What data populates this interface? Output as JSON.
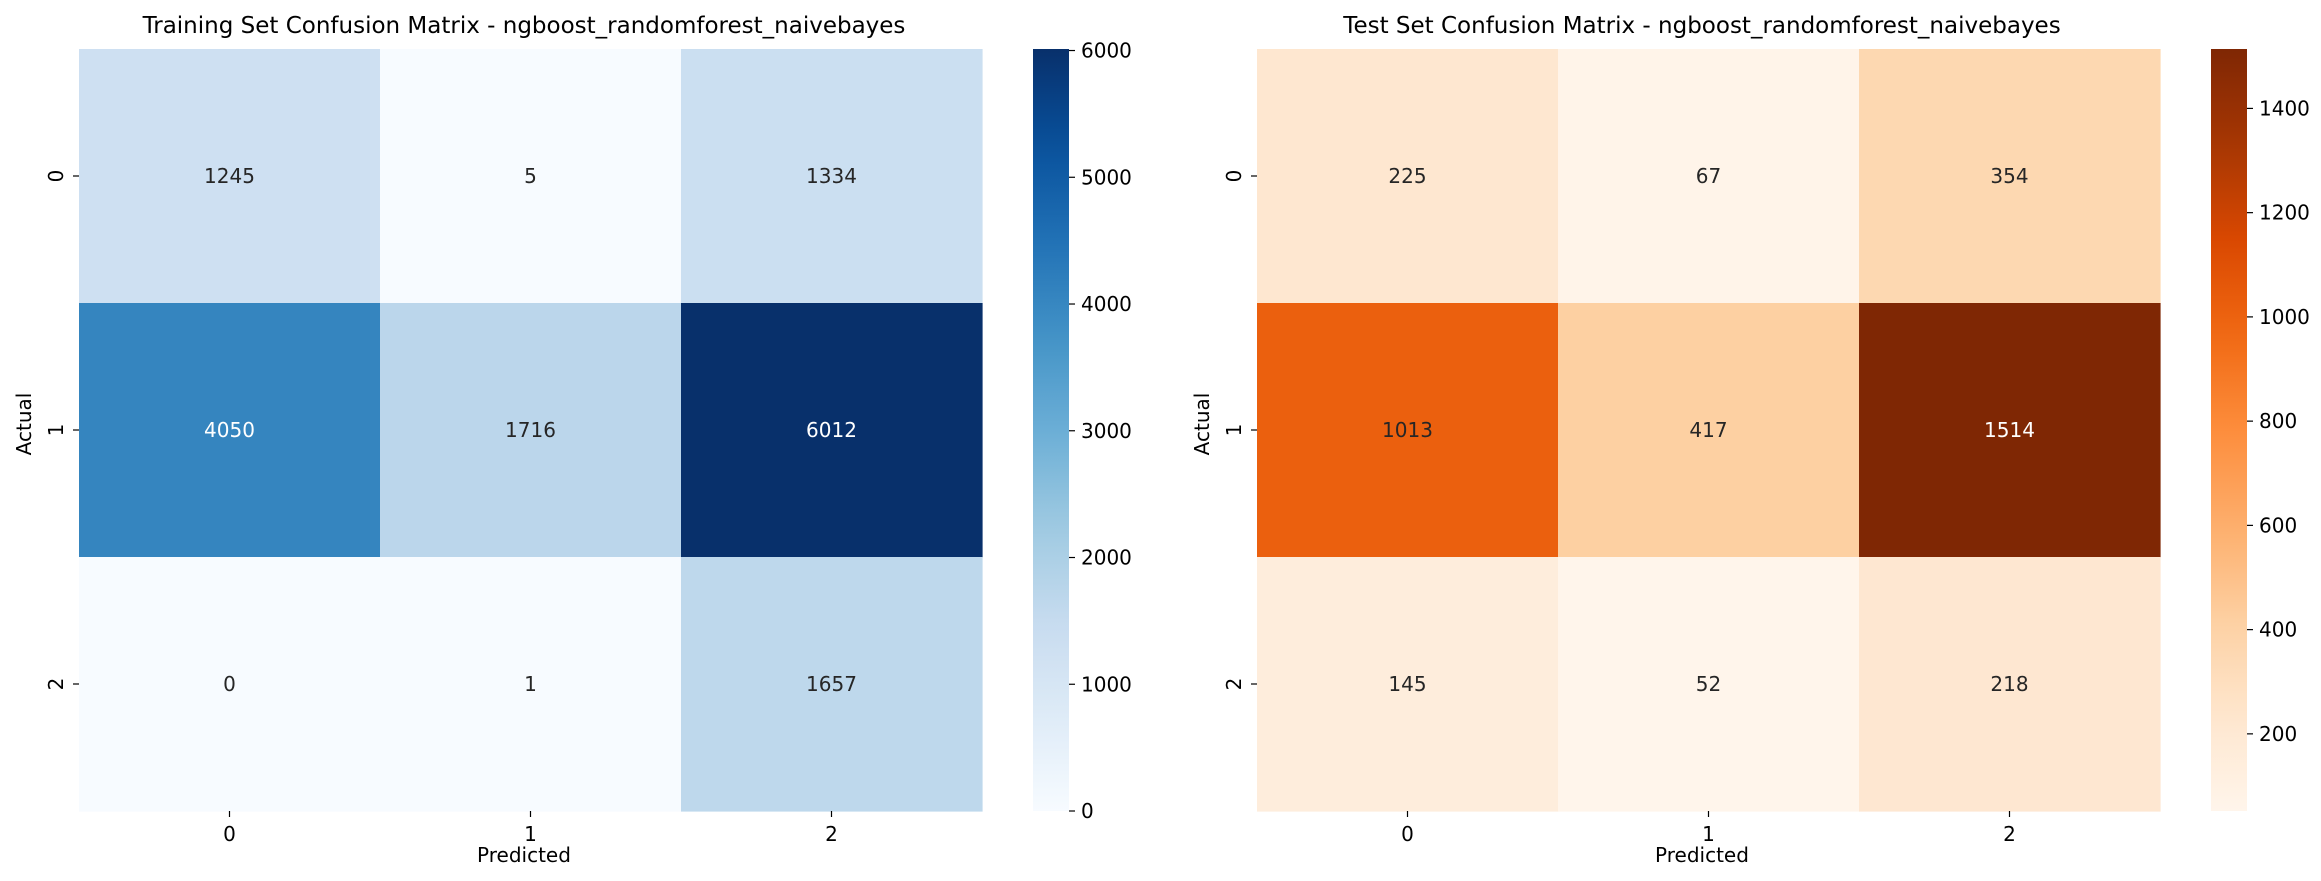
{
  "chart_data": [
    {
      "type": "heatmap",
      "title": "Training Set Confusion Matrix - ngboost_randomforest_naivebayes",
      "xlabel": "Predicted",
      "ylabel": "Actual",
      "x_categories": [
        "0",
        "1",
        "2"
      ],
      "y_categories": [
        "0",
        "1",
        "2"
      ],
      "values": [
        [
          1245,
          5,
          1334
        ],
        [
          4050,
          1716,
          6012
        ],
        [
          0,
          1,
          1657
        ]
      ],
      "colormap": "Blues",
      "color_low": "#f7fbff",
      "color_high": "#08306b",
      "vmin": 0,
      "vmax": 6012,
      "colorbar_ticks": [
        0,
        1000,
        2000,
        3000,
        4000,
        5000,
        6000
      ]
    },
    {
      "type": "heatmap",
      "title": "Test Set Confusion Matrix - ngboost_randomforest_naivebayes",
      "xlabel": "Predicted",
      "ylabel": "Actual",
      "x_categories": [
        "0",
        "1",
        "2"
      ],
      "y_categories": [
        "0",
        "1",
        "2"
      ],
      "values": [
        [
          225,
          67,
          354
        ],
        [
          1013,
          417,
          1514
        ],
        [
          145,
          52,
          218
        ]
      ],
      "colormap": "Oranges",
      "color_low": "#fff5eb",
      "color_high": "#7f2704",
      "vmin": 52,
      "vmax": 1514,
      "colorbar_ticks": [
        200,
        400,
        600,
        800,
        1000,
        1200,
        1400
      ]
    }
  ]
}
